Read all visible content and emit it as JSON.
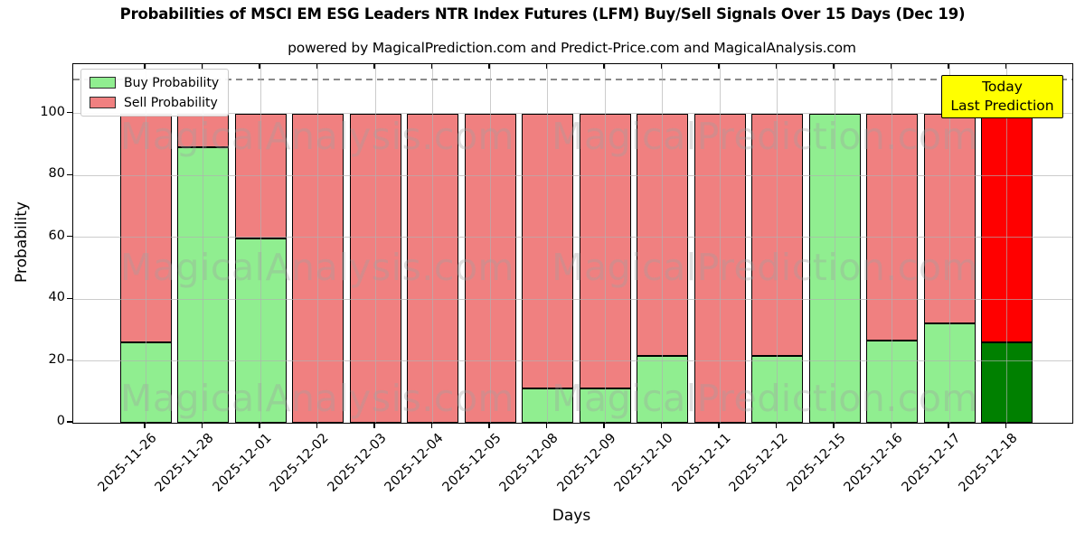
{
  "annotation": {
    "line1": "Today",
    "line2": "Last Prediction",
    "bg_color": "#ffff00"
  },
  "watermarks": {
    "left": "MagicalAnalysis.com",
    "right": "MagicalPrediction.com"
  },
  "colors": {
    "buy": "#90ee90",
    "sell": "#f08080",
    "highlight_buy": "#008000",
    "highlight_sell": "#ff0000",
    "bar_edge": "#000000",
    "grid": "#b0b0b0",
    "dashed_line": "#8a8a8a",
    "annotation_bg": "#ffff00"
  },
  "chart_data": {
    "type": "bar",
    "stacked": true,
    "title": "Probabilities of MSCI EM ESG Leaders NTR Index Futures (LFM) Buy/Sell Signals Over 15 Days (Dec 19)",
    "subtitle": "powered by MagicalPrediction.com and Predict-Price.com and MagicalAnalysis.com",
    "xlabel": "Days",
    "ylabel": "Probability",
    "categories": [
      "2025-11-26",
      "2025-11-28",
      "2025-12-01",
      "2025-12-02",
      "2025-12-03",
      "2025-12-04",
      "2025-12-05",
      "2025-12-08",
      "2025-12-09",
      "2025-12-10",
      "2025-12-11",
      "2025-12-12",
      "2025-12-15",
      "2025-12-16",
      "2025-12-17",
      "2025-12-18"
    ],
    "series": [
      {
        "name": "Buy Probability",
        "color": "#90ee90",
        "values": [
          26,
          89,
          59.5,
          0,
          0,
          0,
          0,
          11,
          11,
          21.5,
          0,
          21.5,
          100,
          26.5,
          32,
          26
        ]
      },
      {
        "name": "Sell Probability",
        "color": "#f08080",
        "values": [
          74,
          11,
          40.5,
          100,
          100,
          100,
          100,
          89,
          89,
          78.5,
          100,
          78.5,
          0,
          73.5,
          68,
          74
        ]
      }
    ],
    "highlight_last_bar": {
      "buy_color": "#008000",
      "sell_color": "#ff0000"
    },
    "yticks": [
      0,
      20,
      40,
      60,
      80,
      100
    ],
    "ylim": [
      0,
      116
    ],
    "dashed_line_y": 111,
    "grid": true,
    "legend_position": "upper left"
  }
}
